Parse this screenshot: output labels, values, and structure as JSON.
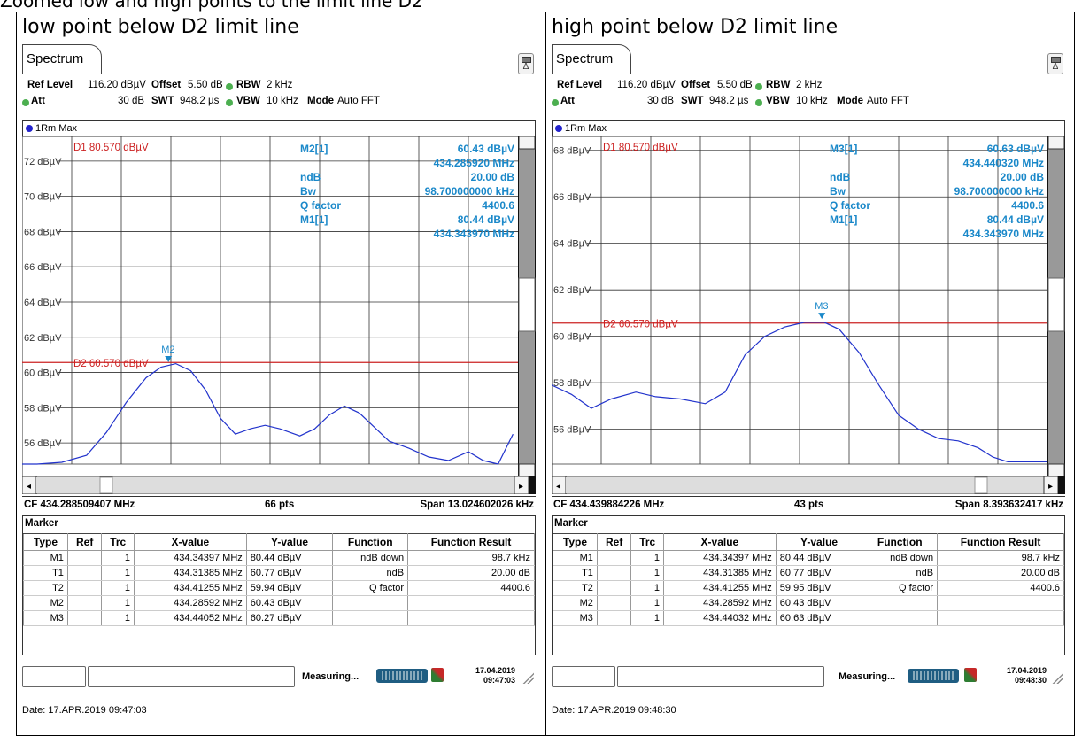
{
  "caption": "Zoomed low and high points to the limit line D2",
  "colors": {
    "trace": "#2233cc",
    "limit": "#cc2222",
    "marker": "#1a88c9",
    "grid": "#333333"
  },
  "panels": [
    {
      "heading": "low point below D2 limit line",
      "tab": "Spectrum",
      "settings": {
        "ref_label": "Ref Level",
        "ref_value": "116.20 dBµV",
        "offset_label": "Offset",
        "offset_value": "5.50 dB",
        "rbw_label": "RBW",
        "rbw_value": "2 kHz",
        "att_label": "Att",
        "att_value": "30 dB",
        "swt_label": "SWT",
        "swt_value": "948.2 µs",
        "vbw_label": "VBW",
        "vbw_value": "10 kHz",
        "mode_label": "Mode",
        "mode_value": "Auto FFT"
      },
      "trace_label": "1Rm Max",
      "yticks": [
        "72 dBµV",
        "70 dBµV",
        "68 dBµV",
        "66 dBµV",
        "64 dBµV",
        "62 dBµV",
        "60 dBµV",
        "58 dBµV",
        "56 dBµV"
      ],
      "ytick_values": [
        72,
        70,
        68,
        66,
        64,
        62,
        60,
        58,
        56
      ],
      "ymax": 73.4,
      "ymin": 54.8,
      "d1_label": "D1  80.570 dBµV",
      "d2_label": "D2  60.570 dBµV",
      "d2_value": 60.57,
      "marker_info_labels": [
        "M2[1]",
        "",
        "ndB",
        "Bw",
        "Q factor",
        "M1[1]",
        ""
      ],
      "marker_info_values": [
        "60.43 dBµV",
        "434.285920 MHz",
        "20.00 dB",
        "98.700000000 kHz",
        "4400.6",
        "80.44 dBµV",
        "434.343970 MHz"
      ],
      "marker_tag": "M2",
      "marker_pos": [
        0.295,
        60.43
      ],
      "trace": [
        [
          0,
          54.5
        ],
        [
          0.03,
          54.6
        ],
        [
          0.08,
          54.9
        ],
        [
          0.13,
          55.3
        ],
        [
          0.17,
          56.6
        ],
        [
          0.21,
          58.3
        ],
        [
          0.25,
          59.7
        ],
        [
          0.28,
          60.3
        ],
        [
          0.31,
          60.5
        ],
        [
          0.34,
          60.1
        ],
        [
          0.37,
          59.0
        ],
        [
          0.4,
          57.4
        ],
        [
          0.43,
          56.5
        ],
        [
          0.46,
          56.8
        ],
        [
          0.49,
          57.0
        ],
        [
          0.52,
          56.8
        ],
        [
          0.56,
          56.4
        ],
        [
          0.59,
          56.8
        ],
        [
          0.62,
          57.6
        ],
        [
          0.65,
          58.1
        ],
        [
          0.68,
          57.7
        ],
        [
          0.71,
          56.9
        ],
        [
          0.74,
          56.1
        ],
        [
          0.78,
          55.7
        ],
        [
          0.82,
          55.2
        ],
        [
          0.86,
          55.0
        ],
        [
          0.9,
          55.5
        ],
        [
          0.93,
          55.0
        ],
        [
          0.96,
          54.6
        ],
        [
          0.99,
          56.5
        ]
      ],
      "status": {
        "cf": "CF 434.288509407 MHz",
        "pts": "66 pts",
        "span": "Span 13.024602026 kHz"
      },
      "marker_title": "Marker",
      "marker_headers": [
        "Type",
        "Ref",
        "Trc",
        "X-value",
        "Y-value",
        "Function",
        "Function Result"
      ],
      "marker_rows": [
        [
          "M1",
          "",
          "1",
          "434.34397 MHz",
          "80.44 dBµV",
          "ndB down",
          "98.7 kHz"
        ],
        [
          "T1",
          "",
          "1",
          "434.31385 MHz",
          "60.77 dBµV",
          "ndB",
          "20.00 dB"
        ],
        [
          "T2",
          "",
          "1",
          "434.41255 MHz",
          "59.94 dBµV",
          "Q factor",
          "4400.6"
        ],
        [
          "M2",
          "",
          "1",
          "434.28592 MHz",
          "60.43 dBµV",
          "",
          ""
        ],
        [
          "M3",
          "",
          "1",
          "434.44052 MHz",
          "60.27 dBµV",
          "",
          ""
        ]
      ],
      "measuring": "Measuring...",
      "stamp_date": "17.04.2019",
      "stamp_time": "09:47:03",
      "date_line": "Date: 17.APR.2019  09:47:03"
    },
    {
      "heading": "high point below D2 limit line",
      "tab": "Spectrum",
      "settings": {
        "ref_label": "Ref Level",
        "ref_value": "116.20 dBµV",
        "offset_label": "Offset",
        "offset_value": "5.50 dB",
        "rbw_label": "RBW",
        "rbw_value": "2 kHz",
        "att_label": "Att",
        "att_value": "30 dB",
        "swt_label": "SWT",
        "swt_value": "948.2 µs",
        "vbw_label": "VBW",
        "vbw_value": "10 kHz",
        "mode_label": "Mode",
        "mode_value": "Auto FFT"
      },
      "trace_label": "1Rm Max",
      "yticks": [
        "68 dBµV",
        "66 dBµV",
        "64 dBµV",
        "62 dBµV",
        "60 dBµV",
        "58 dBµV",
        "56 dBµV"
      ],
      "ytick_values": [
        68,
        66,
        64,
        62,
        60,
        58,
        56
      ],
      "ymax": 68.6,
      "ymin": 54.5,
      "d1_label": "D1  80.570 dBµV",
      "d2_label": "D2  60.570 dBµV",
      "d2_value": 60.57,
      "marker_info_labels": [
        "M3[1]",
        "",
        "ndB",
        "Bw",
        "Q factor",
        "M1[1]",
        ""
      ],
      "marker_info_values": [
        "60.63 dBµV",
        "434.440320 MHz",
        "20.00 dB",
        "98.700000000 kHz",
        "4400.6",
        "80.44 dBµV",
        "434.343970 MHz"
      ],
      "marker_tag": "M3",
      "marker_pos": [
        0.545,
        60.63
      ],
      "trace": [
        [
          0,
          57.9
        ],
        [
          0.04,
          57.5
        ],
        [
          0.08,
          56.9
        ],
        [
          0.12,
          57.3
        ],
        [
          0.17,
          57.6
        ],
        [
          0.21,
          57.4
        ],
        [
          0.26,
          57.3
        ],
        [
          0.31,
          57.1
        ],
        [
          0.35,
          57.6
        ],
        [
          0.39,
          59.2
        ],
        [
          0.43,
          60.0
        ],
        [
          0.47,
          60.4
        ],
        [
          0.51,
          60.6
        ],
        [
          0.55,
          60.6
        ],
        [
          0.58,
          60.3
        ],
        [
          0.62,
          59.3
        ],
        [
          0.66,
          57.9
        ],
        [
          0.7,
          56.6
        ],
        [
          0.74,
          56.0
        ],
        [
          0.78,
          55.6
        ],
        [
          0.82,
          55.5
        ],
        [
          0.86,
          55.2
        ],
        [
          0.89,
          54.8
        ],
        [
          0.92,
          54.6
        ],
        [
          0.96,
          54.6
        ],
        [
          1.0,
          54.6
        ]
      ],
      "status": {
        "cf": "CF 434.439884226 MHz",
        "pts": "43 pts",
        "span": "Span 8.393632417 kHz"
      },
      "marker_title": "Marker",
      "marker_headers": [
        "Type",
        "Ref",
        "Trc",
        "X-value",
        "Y-value",
        "Function",
        "Function Result"
      ],
      "marker_rows": [
        [
          "M1",
          "",
          "1",
          "434.34397 MHz",
          "80.44 dBµV",
          "ndB down",
          "98.7 kHz"
        ],
        [
          "T1",
          "",
          "1",
          "434.31385 MHz",
          "60.77 dBµV",
          "ndB",
          "20.00 dB"
        ],
        [
          "T2",
          "",
          "1",
          "434.41255 MHz",
          "59.95 dBµV",
          "Q factor",
          "4400.6"
        ],
        [
          "M2",
          "",
          "1",
          "434.28592 MHz",
          "60.43 dBµV",
          "",
          ""
        ],
        [
          "M3",
          "",
          "1",
          "434.44032 MHz",
          "60.63 dBµV",
          "",
          ""
        ]
      ],
      "measuring": "Measuring...",
      "stamp_date": "17.04.2019",
      "stamp_time": "09:48:30",
      "date_line": "Date: 17.APR.2019  09:48:30"
    }
  ]
}
